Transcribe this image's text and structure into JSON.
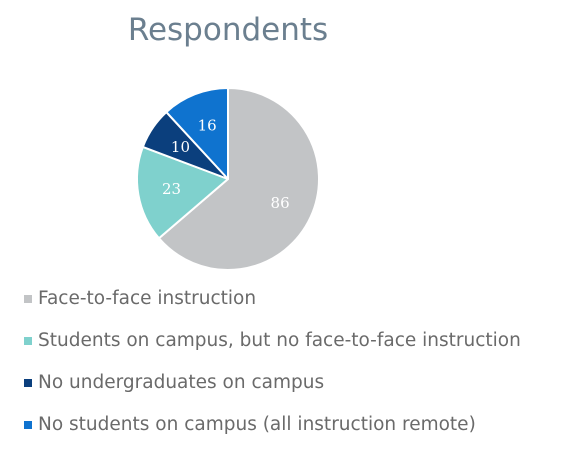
{
  "chart_data": {
    "type": "pie",
    "title": "Respondents",
    "slices": [
      {
        "label": "Face-to-face instruction",
        "value": 86,
        "color": "#c2c4c6",
        "text_color": "#ffffff"
      },
      {
        "label": "Students on campus, but no face-to-face instruction",
        "value": 23,
        "color": "#7fd1cd",
        "text_color": "#ffffff"
      },
      {
        "label": "No undergraduates on campus",
        "value": 10,
        "color": "#0b3f7d",
        "text_color": "#ffffff"
      },
      {
        "label": "No students on campus (all instruction remote)",
        "value": 16,
        "color": "#0f73cf",
        "text_color": "#ffffff"
      }
    ],
    "legend_position": "bottom",
    "start_angle_degrees": 0,
    "direction": "clockwise"
  }
}
